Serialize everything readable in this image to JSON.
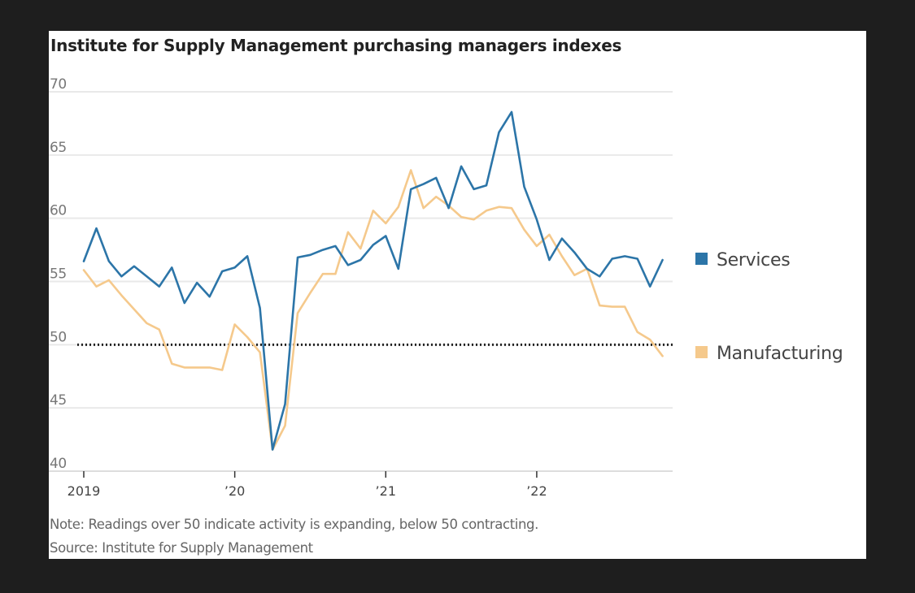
{
  "chart_data": {
    "type": "line",
    "title": "Institute for Supply Management purchasing managers indexes",
    "xlabel": "",
    "ylabel": "",
    "ylim": [
      40,
      70
    ],
    "yticks": [
      70,
      65,
      60,
      55,
      50,
      45,
      40
    ],
    "xticks": [
      {
        "t": 2019.0,
        "label": "2019"
      },
      {
        "t": 2020.0,
        "label": "’20"
      },
      {
        "t": 2021.0,
        "label": "’21"
      },
      {
        "t": 2022.0,
        "label": "’22"
      }
    ],
    "reference_line": {
      "value": 50,
      "style": "dotted"
    },
    "legend_position": "right",
    "x_start": "2019-01",
    "grid": true,
    "series": [
      {
        "name": "Services",
        "color": "#2c75a8",
        "values": [
          56.6,
          59.2,
          56.6,
          55.4,
          56.2,
          55.4,
          54.6,
          56.1,
          53.3,
          54.9,
          53.8,
          55.8,
          56.1,
          57.0,
          52.9,
          41.7,
          45.3,
          56.9,
          57.1,
          57.5,
          57.8,
          56.3,
          56.7,
          57.9,
          58.6,
          56.0,
          62.3,
          62.7,
          63.2,
          60.8,
          64.1,
          62.3,
          62.6,
          66.8,
          68.4,
          62.5,
          59.9,
          56.7,
          58.4,
          57.3,
          56.0,
          55.4,
          56.8,
          57.0,
          56.8,
          54.6,
          56.7
        ]
      },
      {
        "name": "Manufacturing",
        "color": "#f5c98c",
        "values": [
          55.9,
          54.6,
          55.1,
          53.9,
          52.8,
          51.7,
          51.2,
          48.5,
          48.2,
          48.2,
          48.2,
          48.0,
          51.6,
          50.6,
          49.4,
          41.7,
          43.6,
          52.5,
          54.1,
          55.6,
          55.6,
          58.9,
          57.6,
          60.6,
          59.6,
          60.9,
          63.8,
          60.8,
          61.7,
          61.0,
          60.1,
          59.9,
          60.6,
          60.9,
          60.8,
          59.1,
          57.8,
          58.7,
          57.0,
          55.5,
          56.0,
          53.1,
          53.0,
          53.0,
          51.0,
          50.4,
          49.1
        ]
      }
    ]
  },
  "note": "Note: Readings over 50 indicate activity is expanding, below 50 contracting.",
  "source": "Source: Institute for Supply Management"
}
